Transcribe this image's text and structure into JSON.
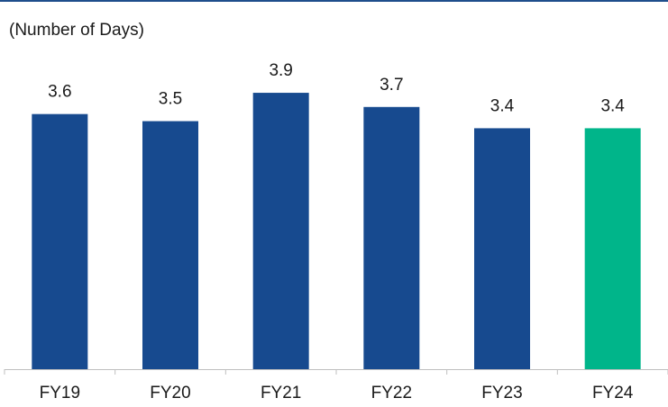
{
  "chart_data": {
    "type": "bar",
    "subtitle": "(Number of Days)",
    "categories": [
      "FY19",
      "FY20",
      "FY21",
      "FY22",
      "FY23",
      "FY24"
    ],
    "values": [
      3.6,
      3.5,
      3.9,
      3.7,
      3.4,
      3.4
    ],
    "colors": [
      "#174a8f",
      "#174a8f",
      "#174a8f",
      "#174a8f",
      "#174a8f",
      "#00b58a"
    ]
  }
}
